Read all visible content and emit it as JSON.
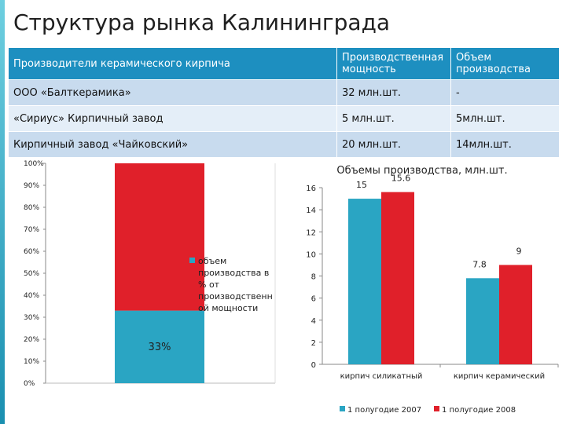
{
  "title": "Структура рынка Калининграда",
  "table": {
    "headers": [
      "Производители керамического кирпича",
      "Производственная мощность",
      "Объем производства"
    ],
    "rows": [
      [
        "ООО «Балткерамика»",
        "32 млн.шт.",
        "-"
      ],
      [
        "«Сириус» Кирпичный завод",
        "5 млн.шт.",
        "5млн.шт."
      ],
      [
        "Кирпичный завод «Чайковский»",
        "20 млн.шт.",
        "14млн.шт."
      ]
    ]
  },
  "chart_data": [
    {
      "type": "bar",
      "stacked": true,
      "title": "",
      "yticks": [
        "0%",
        "10%",
        "20%",
        "30%",
        "40%",
        "50%",
        "60%",
        "70%",
        "80%",
        "90%",
        "100%"
      ],
      "ylim": [
        0,
        100
      ],
      "segments": [
        {
          "name": "",
          "value": 33,
          "label": "33%",
          "color": "#2aa5c3"
        },
        {
          "name": "",
          "value": 67,
          "color": "#e0202a"
        }
      ],
      "legend": [
        "объем",
        "производства в",
        "% от",
        "производственн",
        "ой мощности"
      ],
      "legend_color": "#2aa5c3"
    },
    {
      "type": "bar",
      "title": "Объемы производства, млн.шт.",
      "categories": [
        "кирпич силикатный",
        "кирпич керамический"
      ],
      "ylim": [
        0,
        16
      ],
      "yticks": [
        0,
        2,
        4,
        6,
        8,
        10,
        12,
        14,
        16
      ],
      "series": [
        {
          "name": "1 полугодие 2007",
          "values": [
            15,
            7.8
          ],
          "labels": [
            "15",
            "7.8"
          ],
          "color": "#2aa5c3"
        },
        {
          "name": "1 полугодие 2008",
          "values": [
            15.6,
            9
          ],
          "labels": [
            "15.6",
            "9"
          ],
          "color": "#e0202a"
        }
      ]
    }
  ]
}
